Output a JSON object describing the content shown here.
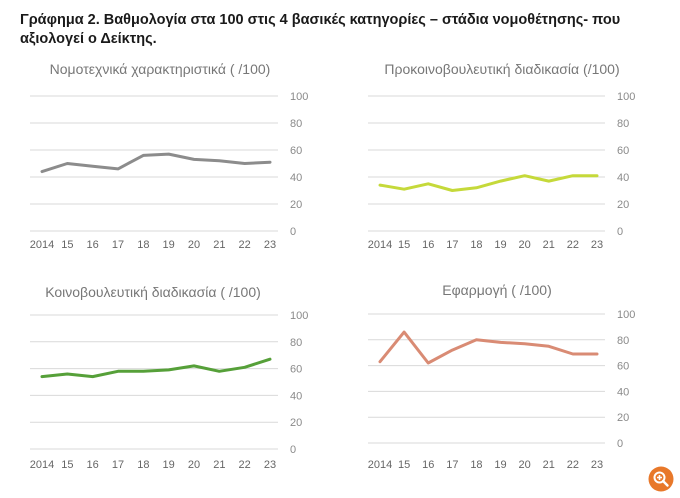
{
  "figure_title": "Γράφημα 2. Βαθμολογία στα 100 στις 4 βασικές κατηγορίες – στάδια νομοθέτησης- που αξιολογεί ο Δείκτης.",
  "zoom_icon": "zoom-in-icon",
  "chart_data": [
    {
      "type": "line",
      "title": "Νομοτεχνικά χαρακτηριστικά ( /100)",
      "color": "#8c8c8c",
      "x": [
        "2014",
        "15",
        "16",
        "17",
        "18",
        "19",
        "20",
        "21",
        "22",
        "23"
      ],
      "values": [
        44,
        50,
        48,
        46,
        56,
        57,
        53,
        52,
        50,
        51
      ],
      "yticks": [
        "100",
        "80",
        "60",
        "40",
        "20",
        "0"
      ],
      "ylim": [
        0,
        100
      ],
      "grid": true
    },
    {
      "type": "line",
      "title": "Προκοινοβουλευτική διαδικασία (/100)",
      "color": "#c5d93a",
      "x": [
        "2014",
        "15",
        "16",
        "17",
        "18",
        "19",
        "20",
        "21",
        "22",
        "23"
      ],
      "values": [
        34,
        31,
        35,
        30,
        32,
        37,
        41,
        37,
        41,
        41
      ],
      "yticks": [
        "100",
        "80",
        "60",
        "40",
        "20",
        "0"
      ],
      "ylim": [
        0,
        100
      ],
      "grid": true
    },
    {
      "type": "line",
      "title": "Κοινοβουλευτική διαδικασία ( /100)",
      "color": "#56a039",
      "x": [
        "2014",
        "15",
        "16",
        "17",
        "18",
        "19",
        "20",
        "21",
        "22",
        "23"
      ],
      "values": [
        54,
        56,
        54,
        58,
        58,
        59,
        62,
        58,
        61,
        67
      ],
      "yticks": [
        "100",
        "80",
        "60",
        "40",
        "20",
        "0"
      ],
      "ylim": [
        0,
        100
      ],
      "grid": true
    },
    {
      "type": "line",
      "title": "Εφαρμογή ( /100)",
      "color": "#d98b74",
      "x": [
        "2014",
        "15",
        "16",
        "17",
        "18",
        "19",
        "20",
        "21",
        "22",
        "23"
      ],
      "values": [
        63,
        86,
        62,
        72,
        80,
        78,
        77,
        75,
        69,
        69
      ],
      "yticks": [
        "100",
        "80",
        "60",
        "40",
        "20",
        "0"
      ],
      "ylim": [
        0,
        100
      ],
      "grid": true
    }
  ]
}
